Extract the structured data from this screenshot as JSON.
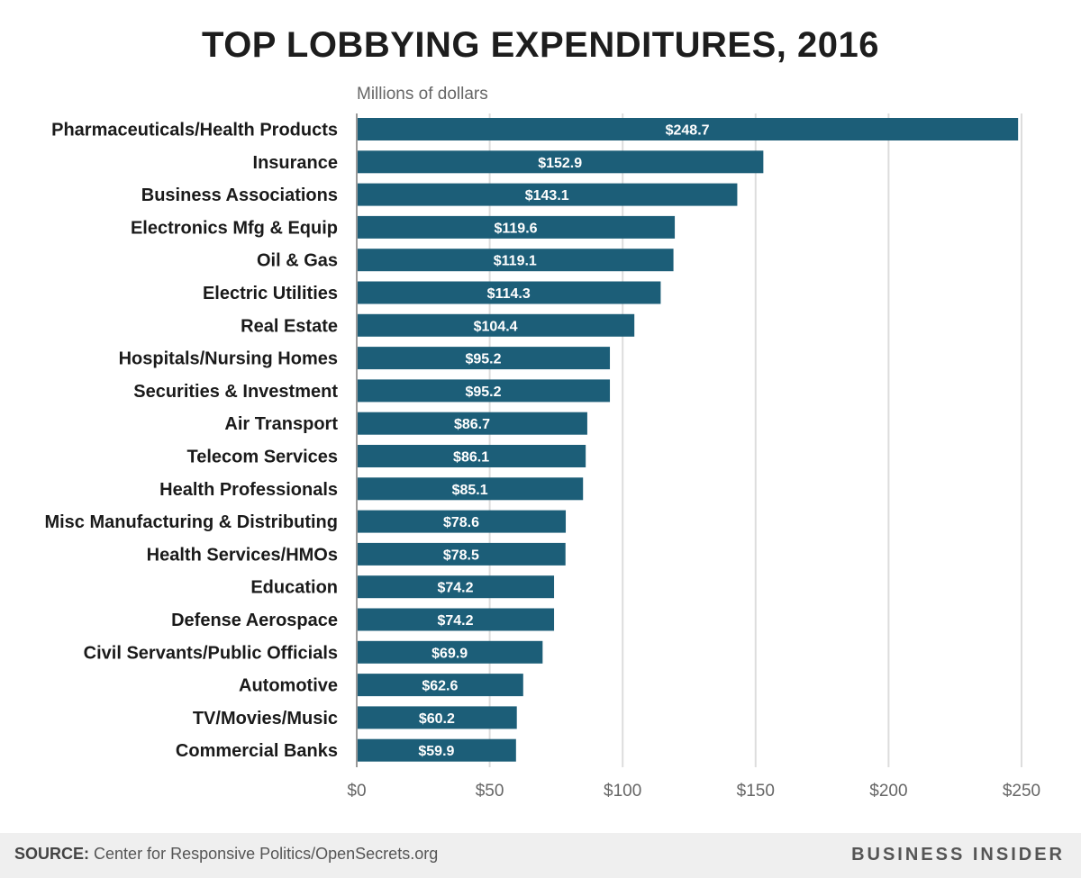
{
  "title": "TOP LOBBYING EXPENDITURES, 2016",
  "subtitle": "Millions of dollars",
  "footer": {
    "source_label": "SOURCE:",
    "source_text": "Center for Responsive Politics/OpenSecrets.org",
    "brand": "BUSINESS INSIDER"
  },
  "colors": {
    "bar": "#1c5e78",
    "grid": "#dddddd",
    "axis": "#999999"
  },
  "chart_data": {
    "type": "bar",
    "orientation": "horizontal",
    "title": "TOP LOBBYING EXPENDITURES, 2016",
    "xlabel": "",
    "ylabel": "",
    "unit_note": "Millions of dollars",
    "xlim": [
      0,
      250
    ],
    "x_ticks": [
      0,
      50,
      100,
      150,
      200,
      250
    ],
    "x_tick_labels": [
      "$0",
      "$50",
      "$100",
      "$150",
      "$200",
      "$250"
    ],
    "grid": true,
    "categories": [
      "Pharmaceuticals/Health Products",
      "Insurance",
      "Business Associations",
      "Electronics Mfg & Equip",
      "Oil & Gas",
      "Electric Utilities",
      "Real Estate",
      "Hospitals/Nursing Homes",
      "Securities & Investment",
      "Air Transport",
      "Telecom Services",
      "Health Professionals",
      "Misc Manufacturing & Distributing",
      "Health Services/HMOs",
      "Education",
      "Defense Aerospace",
      "Civil Servants/Public Officials",
      "Automotive",
      "TV/Movies/Music",
      "Commercial Banks"
    ],
    "values": [
      248.7,
      152.9,
      143.1,
      119.6,
      119.1,
      114.3,
      104.4,
      95.2,
      95.2,
      86.7,
      86.1,
      85.1,
      78.6,
      78.5,
      74.2,
      74.2,
      69.9,
      62.6,
      60.2,
      59.9
    ],
    "data_labels": [
      "$248.7",
      "$152.9",
      "$143.1",
      "$119.6",
      "$119.1",
      "$114.3",
      "$104.4",
      "$95.2",
      "$95.2",
      "$86.7",
      "$86.1",
      "$85.1",
      "$78.6",
      "$78.5",
      "$74.2",
      "$74.2",
      "$69.9",
      "$62.6",
      "$60.2",
      "$59.9"
    ]
  }
}
